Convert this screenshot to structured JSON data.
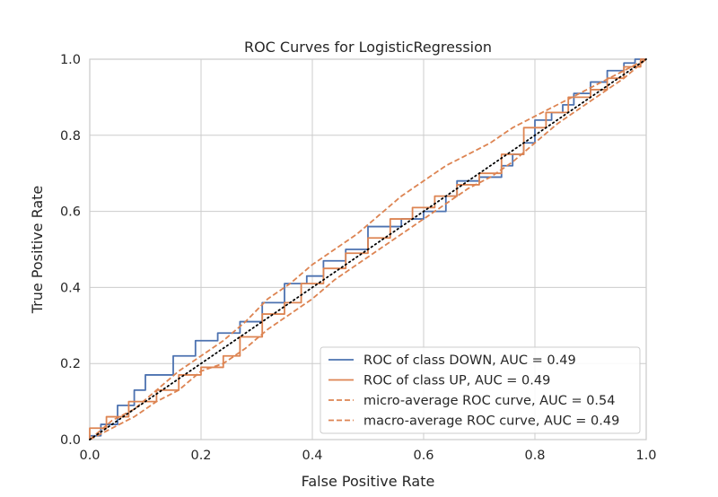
{
  "chart_data": {
    "type": "line",
    "title": "ROC Curves for LogisticRegression",
    "xlabel": "False Positive Rate",
    "ylabel": "True Positive Rate",
    "xlim": [
      0,
      1
    ],
    "ylim": [
      0,
      1
    ],
    "xticks": [
      "0.0",
      "0.2",
      "0.4",
      "0.6",
      "0.8",
      "1.0"
    ],
    "yticks": [
      "0.0",
      "0.2",
      "0.4",
      "0.6",
      "0.8",
      "1.0"
    ],
    "grid": true,
    "legend_position": "lower-right",
    "diagonal": {
      "x": [
        0,
        1
      ],
      "y": [
        0,
        1
      ],
      "style": "dotted",
      "color": "#000000"
    },
    "series": [
      {
        "name": "ROC of class DOWN, AUC = 0.49",
        "color": "#4c72b0",
        "style": "step",
        "x": [
          0,
          0.02,
          0.05,
          0.08,
          0.1,
          0.15,
          0.19,
          0.23,
          0.27,
          0.31,
          0.35,
          0.39,
          0.42,
          0.46,
          0.5,
          0.56,
          0.6,
          0.64,
          0.66,
          0.7,
          0.74,
          0.76,
          0.78,
          0.8,
          0.83,
          0.85,
          0.87,
          0.9,
          0.93,
          0.96,
          0.98,
          1.0
        ],
        "y": [
          0,
          0.01,
          0.04,
          0.09,
          0.13,
          0.17,
          0.22,
          0.26,
          0.28,
          0.31,
          0.36,
          0.41,
          0.43,
          0.47,
          0.5,
          0.56,
          0.58,
          0.6,
          0.64,
          0.68,
          0.69,
          0.72,
          0.75,
          0.78,
          0.84,
          0.86,
          0.88,
          0.91,
          0.94,
          0.97,
          0.99,
          1.0
        ]
      },
      {
        "name": "ROC of class UP, AUC = 0.49",
        "color": "#dd8452",
        "style": "step",
        "x": [
          0,
          0.03,
          0.07,
          0.12,
          0.16,
          0.2,
          0.24,
          0.27,
          0.31,
          0.35,
          0.38,
          0.42,
          0.46,
          0.5,
          0.54,
          0.58,
          0.62,
          0.66,
          0.7,
          0.74,
          0.78,
          0.82,
          0.86,
          0.9,
          0.93,
          0.96,
          0.99,
          1.0
        ],
        "y": [
          0,
          0.03,
          0.06,
          0.1,
          0.13,
          0.17,
          0.19,
          0.22,
          0.27,
          0.33,
          0.36,
          0.41,
          0.45,
          0.49,
          0.53,
          0.58,
          0.61,
          0.64,
          0.67,
          0.7,
          0.75,
          0.82,
          0.86,
          0.9,
          0.92,
          0.95,
          0.98,
          1.0
        ]
      },
      {
        "name": "micro-average ROC curve, AUC = 0.54",
        "color": "#dd8452",
        "style": "dashed",
        "x": [
          0,
          0.04,
          0.08,
          0.12,
          0.16,
          0.2,
          0.24,
          0.28,
          0.32,
          0.36,
          0.4,
          0.44,
          0.48,
          0.52,
          0.56,
          0.6,
          0.64,
          0.68,
          0.72,
          0.76,
          0.8,
          0.84,
          0.88,
          0.92,
          0.96,
          1.0
        ],
        "y": [
          0,
          0.05,
          0.08,
          0.13,
          0.18,
          0.22,
          0.26,
          0.31,
          0.37,
          0.41,
          0.46,
          0.5,
          0.54,
          0.59,
          0.64,
          0.68,
          0.72,
          0.75,
          0.78,
          0.82,
          0.85,
          0.88,
          0.91,
          0.94,
          0.97,
          1.0
        ]
      },
      {
        "name": "macro-average ROC curve, AUC = 0.49",
        "color": "#dd8452",
        "style": "dashed",
        "x": [
          0,
          0.04,
          0.08,
          0.12,
          0.16,
          0.2,
          0.24,
          0.28,
          0.32,
          0.36,
          0.4,
          0.44,
          0.48,
          0.52,
          0.56,
          0.6,
          0.64,
          0.68,
          0.72,
          0.76,
          0.8,
          0.84,
          0.88,
          0.92,
          0.96,
          1.0
        ],
        "y": [
          0,
          0.03,
          0.06,
          0.1,
          0.13,
          0.18,
          0.2,
          0.24,
          0.29,
          0.33,
          0.37,
          0.42,
          0.46,
          0.5,
          0.54,
          0.58,
          0.62,
          0.66,
          0.69,
          0.73,
          0.78,
          0.83,
          0.87,
          0.91,
          0.95,
          1.0
        ]
      }
    ]
  }
}
